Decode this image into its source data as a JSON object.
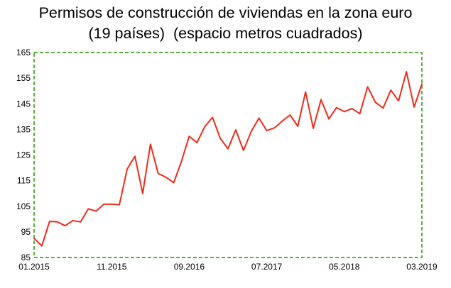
{
  "chart_data": {
    "type": "line",
    "title_line1": "Permisos de construcción de viviendas en la zona euro",
    "title_line2": "(19 países)  (espacio metros cuadrados)",
    "xlabel": "",
    "ylabel": "",
    "ylim": [
      85,
      165
    ],
    "yticks": [
      "85",
      "95",
      "105",
      "115",
      "125",
      "135",
      "145",
      "155",
      "165"
    ],
    "xticks": [
      "01.2015",
      "11.2015",
      "09.2016",
      "07.2017",
      "05.2018",
      "03.2019"
    ],
    "x_start": "2015-01",
    "x_end": "2019-03",
    "grid": false,
    "frame_style": "green dashed border",
    "colors": {
      "line": "#ee2b1b",
      "frame": "#5cae3c"
    },
    "series": [
      {
        "values": [
          92.5,
          89.5,
          99.1,
          98.9,
          97.4,
          99.4,
          98.9,
          104.0,
          103.1,
          105.8,
          105.8,
          105.6,
          119.5,
          124.5,
          110.0,
          129.2,
          117.8,
          116.3,
          114.2,
          122.5,
          132.3,
          129.8,
          136.0,
          139.7,
          131.5,
          127.4,
          134.8,
          126.8,
          134.2,
          139.4,
          134.5,
          135.6,
          138.2,
          140.6,
          136.2,
          149.6,
          135.4,
          146.6,
          139.1,
          143.5,
          141.9,
          143.1,
          141.1,
          151.6,
          145.6,
          143.3,
          150.3,
          146.1,
          157.5,
          143.7,
          152.7
        ]
      }
    ]
  }
}
